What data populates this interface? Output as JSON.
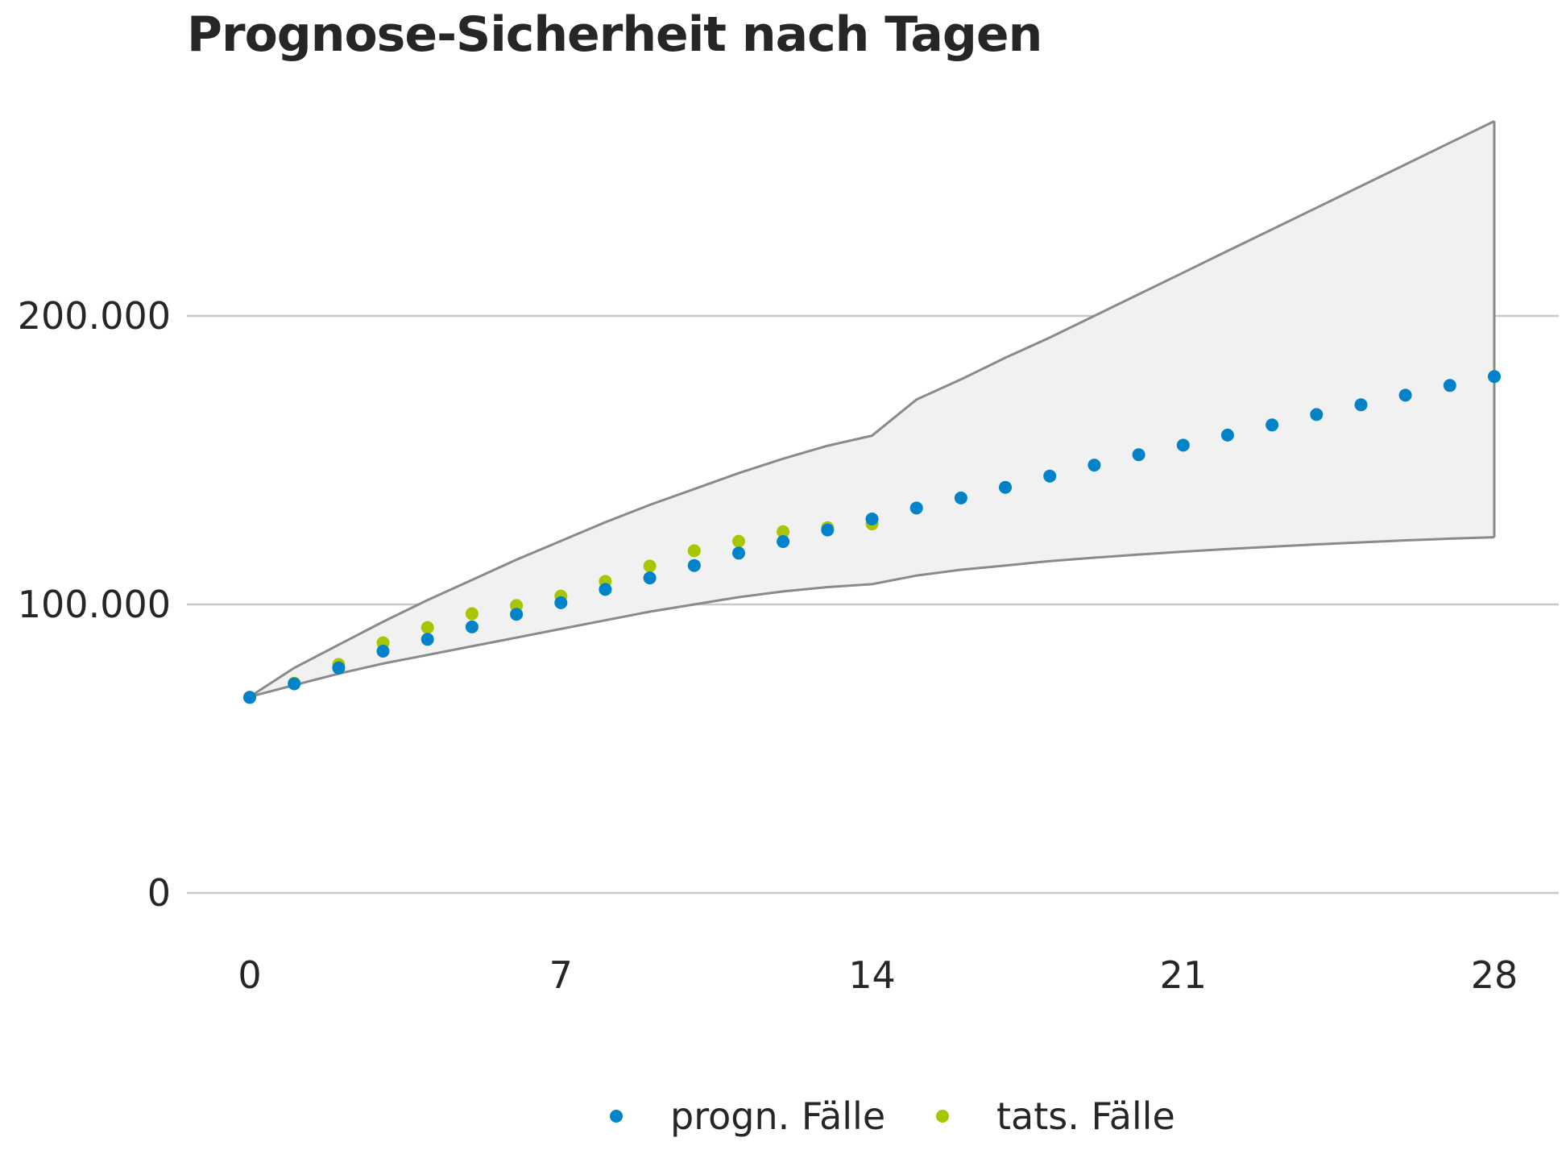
{
  "chart_data": {
    "type": "scatter",
    "title": "Prognose-Sicherheit nach Tagen",
    "xlabel": "",
    "ylabel": "",
    "xlim": [
      0,
      28
    ],
    "ylim": [
      0,
      265000
    ],
    "x_ticks": [
      0,
      7,
      14,
      21,
      28
    ],
    "x_tick_labels": [
      "0",
      "7",
      "14",
      "21",
      "28"
    ],
    "y_ticks": [
      0,
      100000,
      200000
    ],
    "y_tick_labels": [
      "0",
      "100.000",
      "200.000"
    ],
    "grid": "horizontal",
    "legend_position": "bottom",
    "band": {
      "x": [
        0,
        1,
        2,
        3,
        4,
        5,
        6,
        7,
        8,
        9,
        10,
        11,
        12,
        13,
        14,
        15,
        16,
        17,
        18,
        19,
        20,
        21,
        22,
        23,
        24,
        25,
        26,
        27,
        28
      ],
      "upper": [
        68000,
        78000,
        86000,
        94000,
        101500,
        108500,
        115500,
        122000,
        128500,
        134500,
        140000,
        145500,
        150500,
        155000,
        158500,
        171000,
        178000,
        185500,
        192500,
        200000,
        207500,
        215000,
        222500,
        230000,
        237500,
        245000,
        252500,
        260000,
        267500
      ],
      "lower": [
        68000,
        72000,
        76000,
        79500,
        82500,
        85500,
        88500,
        91500,
        94500,
        97500,
        100000,
        102500,
        104500,
        106000,
        107000,
        110000,
        112000,
        113500,
        115000,
        116200,
        117300,
        118300,
        119200,
        120000,
        120800,
        121500,
        122200,
        122800,
        123300
      ],
      "color": "#f1f1f1",
      "edge_color": "#8a8a8a"
    },
    "series": [
      {
        "name": "progn. Fälle",
        "color": "#0083c8",
        "x": [
          0,
          1,
          2,
          3,
          4,
          5,
          6,
          7,
          8,
          9,
          10,
          11,
          12,
          13,
          14,
          15,
          16,
          17,
          18,
          19,
          20,
          21,
          22,
          23,
          24,
          25,
          26,
          27,
          28
        ],
        "values": [
          67800,
          72500,
          78000,
          83800,
          87900,
          92200,
          96600,
          100600,
          105200,
          109200,
          113500,
          117800,
          121800,
          125800,
          129600,
          133400,
          136900,
          140600,
          144500,
          148300,
          151900,
          155200,
          158700,
          162200,
          165800,
          169200,
          172500,
          175900,
          179000
        ]
      },
      {
        "name": "tats. Fälle",
        "color": "#a8c500",
        "x": [
          0,
          1,
          2,
          3,
          4,
          5,
          6,
          7,
          8,
          9,
          10,
          11,
          12,
          13,
          14
        ],
        "values": [
          67800,
          72700,
          79200,
          86700,
          92000,
          96800,
          99600,
          102900,
          108000,
          113300,
          118600,
          121900,
          125200,
          126600,
          127900
        ]
      }
    ]
  }
}
